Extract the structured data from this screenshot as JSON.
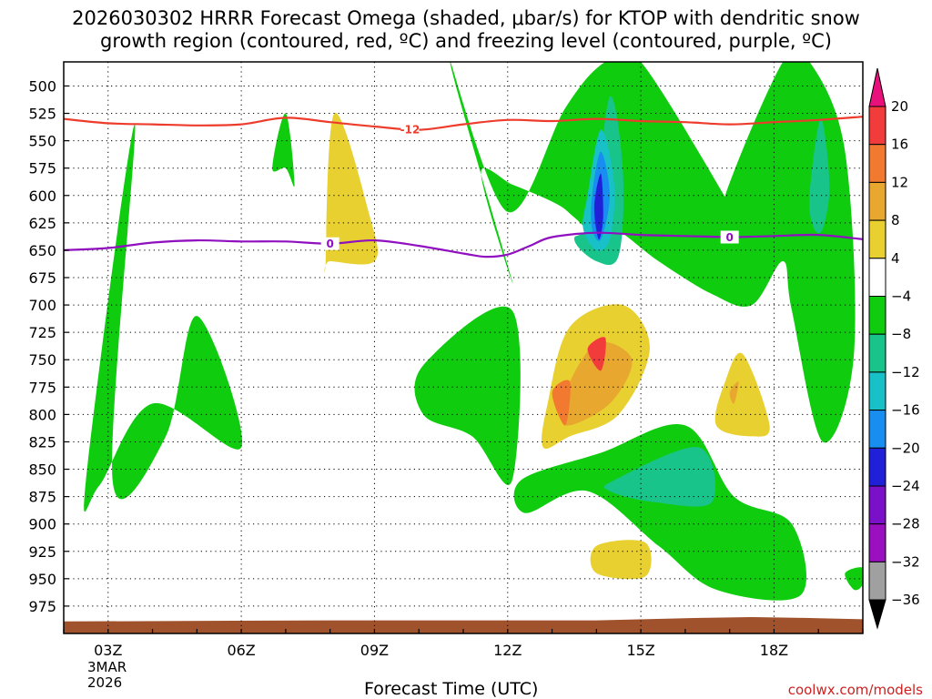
{
  "chart_data": {
    "type": "heatmap",
    "title_line1": "2026030302 HRRR Forecast Omega (shaded, μbar/s) for KTOP with dendritic snow",
    "title_line2": "growth region (contoured, red, ºC) and freezing level (contoured, purple, ºC)",
    "xlabel": "Forecast Time (UTC)",
    "ylabel": "",
    "credit": "coolwx.com/models",
    "x_ticks": [
      "03Z",
      "06Z",
      "09Z",
      "12Z",
      "15Z",
      "18Z"
    ],
    "x_tick_hours": [
      3,
      6,
      9,
      12,
      15,
      18
    ],
    "date_label": [
      "3MAR",
      "2026"
    ],
    "xlim": [
      2,
      20
    ],
    "y_ticks": [
      500,
      525,
      550,
      575,
      600,
      625,
      650,
      675,
      700,
      725,
      750,
      775,
      800,
      825,
      850,
      875,
      900,
      925,
      950,
      975
    ],
    "ylim": [
      478,
      1000
    ],
    "colorbar": {
      "labels": [
        "20",
        "16",
        "12",
        "8",
        "4",
        "−4",
        "−8",
        "−12",
        "−16",
        "−20",
        "−24",
        "−28",
        "−32",
        "−36"
      ],
      "colors": [
        "#e8107a",
        "#f23c3c",
        "#f27a30",
        "#e8a830",
        "#e8d030",
        "#ffffff",
        "#0fcc0f",
        "#18c48a",
        "#18c0c8",
        "#188ef0",
        "#2020d8",
        "#7a10c8",
        "#9a10c0",
        "#a0a0a0",
        "#000000"
      ]
    },
    "contours": [
      {
        "name": "dendritic snow growth region",
        "label": "-12",
        "units": "ºC",
        "color": "#ee3c2c",
        "hours": [
          2,
          3,
          4,
          5,
          6,
          7,
          8,
          9,
          10,
          11,
          12,
          13,
          14,
          15,
          16,
          17,
          18,
          19,
          20
        ],
        "pressure": [
          530,
          534,
          535,
          536,
          535,
          529,
          533,
          537,
          540,
          535,
          531,
          532,
          530,
          532,
          533,
          535,
          533,
          531,
          528
        ]
      },
      {
        "name": "freezing level",
        "label": "0",
        "units": "ºC",
        "color": "#9010c0",
        "hours": [
          2,
          3,
          4,
          5,
          6,
          7,
          8,
          9,
          10,
          11,
          11.5,
          12,
          12.5,
          13,
          14,
          15,
          16,
          17,
          18,
          19,
          20
        ],
        "pressure": [
          650,
          648,
          643,
          641,
          642,
          642,
          644,
          641,
          646,
          653,
          656,
          654,
          646,
          638,
          634,
          636,
          637,
          638,
          637,
          636,
          640
        ]
      }
    ],
    "omega_regions": [
      {
        "value": -6,
        "hours": [
          2.5,
          3.6,
          3.1,
          4.3,
          5,
          6,
          4,
          2.8
        ],
        "pressure": [
          860,
          535,
          860,
          820,
          710,
          830,
          790,
          865
        ]
      },
      {
        "value": -6,
        "hours": [
          6.7,
          7,
          7.2,
          7
        ],
        "pressure": [
          575,
          525,
          590,
          575
        ]
      },
      {
        "value": 6,
        "hours": [
          7.9,
          8.1,
          8.9,
          9,
          8
        ],
        "pressure": [
          660,
          525,
          620,
          660,
          660
        ]
      },
      {
        "value": -6,
        "hours": [
          10.7,
          12,
          13.3,
          14.2,
          15,
          17.1,
          16.9,
          18.2,
          18.8,
          19.6,
          19.8,
          19.1,
          18.4,
          18.2,
          17.5,
          16.6,
          15.4,
          14.4,
          14.1,
          13.5,
          13.2,
          12.7,
          12.1,
          11.4,
          12.1
        ],
        "pressure": [
          478,
          615,
          520,
          478,
          478,
          615,
          600,
          478,
          478,
          560,
          745,
          825,
          705,
          660,
          700,
          690,
          660,
          630,
          640,
          620,
          610,
          600,
          590,
          580,
          678
        ]
      },
      {
        "value": -10,
        "hours": [
          13.9,
          14.3,
          14.6,
          14.5,
          14,
          13.5
        ],
        "pressure": [
          620,
          510,
          580,
          655,
          660,
          640
        ]
      },
      {
        "value": -14,
        "hours": [
          13.8,
          14.1,
          14.4,
          14.3,
          14,
          13.7
        ],
        "pressure": [
          600,
          540,
          590,
          640,
          650,
          630
        ]
      },
      {
        "value": -18,
        "hours": [
          13.9,
          14.1,
          14.3,
          14.1,
          13.9
        ],
        "pressure": [
          600,
          560,
          600,
          640,
          630
        ]
      },
      {
        "value": -22,
        "hours": [
          13.95,
          14.1,
          14.15,
          14.05
        ],
        "pressure": [
          610,
          580,
          620,
          640
        ]
      },
      {
        "value": -26,
        "hours": [
          14,
          14.05,
          14.1
        ],
        "pressure": [
          600,
          610,
          620
        ]
      },
      {
        "value": -6,
        "hours": [
          18.8,
          19.1,
          19.4,
          19.3,
          19.0
        ],
        "pressure": [
          620,
          520,
          600,
          640,
          660
        ]
      },
      {
        "value": -10,
        "hours": [
          18.8,
          19.05,
          19.25,
          19.1,
          18.9
        ],
        "pressure": [
          600,
          530,
          590,
          630,
          630
        ]
      },
      {
        "value": -6,
        "hours": [
          10.1,
          12.1,
          12.1,
          11.2,
          10.1
        ],
        "pressure": [
          755,
          705,
          860,
          820,
          800
        ]
      },
      {
        "value": -6,
        "hours": [
          12.3,
          14.1,
          16,
          17.1,
          18.4,
          18.6,
          16.7,
          15.4,
          13.8,
          12.4
        ],
        "pressure": [
          860,
          835,
          810,
          875,
          900,
          965,
          960,
          920,
          870,
          890
        ]
      },
      {
        "value": -10,
        "hours": [
          14.4,
          16.3,
          16.6,
          15.3,
          14.3
        ],
        "pressure": [
          860,
          830,
          880,
          880,
          870
        ]
      },
      {
        "value": 6,
        "hours": [
          12.9,
          13.4,
          14.6,
          15.2,
          14.5,
          13.4,
          12.8
        ],
        "pressure": [
          790,
          720,
          700,
          740,
          800,
          820,
          830
        ]
      },
      {
        "value": 10,
        "hours": [
          13.3,
          14,
          14.8,
          14.3,
          13.3
        ],
        "pressure": [
          780,
          735,
          750,
          790,
          810
        ]
      },
      {
        "value": 14,
        "hours": [
          13.0,
          13.4,
          13.3
        ],
        "pressure": [
          780,
          770,
          810
        ]
      },
      {
        "value": 18,
        "hours": [
          13.8,
          14.2,
          14.1
        ],
        "pressure": [
          740,
          730,
          760
        ]
      },
      {
        "value": 6,
        "hours": [
          16.9,
          17.3,
          17.9,
          17.5,
          16.7
        ],
        "pressure": [
          770,
          745,
          810,
          820,
          810
        ]
      },
      {
        "value": 10,
        "hours": [
          17.0,
          17.2,
          17.1
        ],
        "pressure": [
          780,
          770,
          790
        ]
      },
      {
        "value": 6,
        "hours": [
          14,
          15.1,
          15.1,
          14
        ],
        "pressure": [
          920,
          917,
          948,
          945
        ]
      },
      {
        "value": -6,
        "hours": [
          19.6,
          20,
          20,
          19.8
        ],
        "pressure": [
          945,
          940,
          955,
          960
        ]
      }
    ],
    "terrain": {
      "color": "#a0522d",
      "hours": [
        2,
        8,
        14,
        16,
        17.5,
        19,
        20
      ],
      "pressure": [
        989,
        988,
        988,
        986,
        985,
        986,
        987
      ]
    }
  }
}
